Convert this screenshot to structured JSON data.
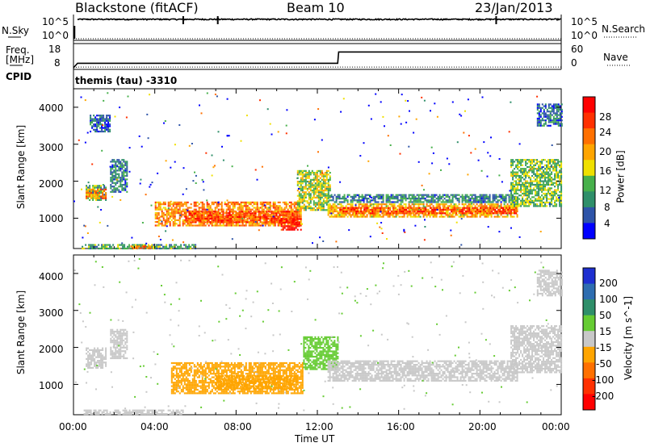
{
  "header": {
    "station": "Blackstone (fitACF)",
    "beam": "Beam 10",
    "date": "23/Jan/2013"
  },
  "top_panel": {
    "left_label": "N.Sky",
    "left_ticks": [
      "10^5",
      "10^0"
    ],
    "right_label": "N.Search",
    "right_ticks": [
      "10^5",
      "10^0"
    ]
  },
  "freq_panel": {
    "left_label_1": "Freq.",
    "left_label_2": "[MHz]",
    "left_ticks": [
      "18",
      "8"
    ],
    "right_label": "Nave",
    "right_ticks": [
      "60",
      "0"
    ],
    "cpid_label": "CPID",
    "cpid_value": "themis (tau) -3310"
  },
  "power_panel": {
    "ylabel": "Slant Range [km]",
    "yticks": [
      "4000",
      "3000",
      "2000",
      "1000"
    ],
    "colorbar_label": "Power [dB]",
    "colorbar_ticks": [
      "28",
      "24",
      "20",
      "16",
      "12",
      "8",
      "4"
    ],
    "colors": [
      "#0000ff",
      "#2e54a8",
      "#2f8f6a",
      "#47b04b",
      "#f0e000",
      "#ffa500",
      "#ff7000",
      "#ff3000",
      "#ff0000"
    ]
  },
  "velocity_panel": {
    "ylabel": "Slant Range [km]",
    "yticks": [
      "4000",
      "3000",
      "2000",
      "1000"
    ],
    "colorbar_label": "Velocity [m s^-1]",
    "colorbar_ticks": [
      "200",
      "100",
      "50",
      "15",
      "-15",
      "-50",
      "-100",
      "-200"
    ],
    "colors": [
      "#1e2fd0",
      "#2e6db0",
      "#2f8f6a",
      "#66cc33",
      "#c8c8c8",
      "#ffa500",
      "#ff7000",
      "#ff3000",
      "#ff0000"
    ]
  },
  "xaxis": {
    "ticks": [
      "00:00",
      "04:00",
      "08:00",
      "12:00",
      "16:00",
      "20:00",
      "00:00"
    ],
    "label": "Time UT"
  },
  "chart_data": [
    {
      "type": "line",
      "title": "N.Sky / N.Search",
      "x": [
        0,
        0.2,
        5.4,
        5.45,
        7.1,
        7.15,
        12.0,
        20.8,
        20.85,
        23.5,
        24
      ],
      "ylog": true,
      "series": [
        {
          "values": [
            1,
            20000,
            20000,
            100000,
            20000,
            100000,
            20000,
            20000,
            100000,
            20000,
            20000
          ]
        }
      ]
    },
    {
      "type": "line",
      "title": "Freq / Nave",
      "x": [
        0,
        0.2,
        13.0,
        13.05,
        24
      ],
      "series": [
        {
          "values": [
            8,
            10,
            10,
            15,
            15
          ]
        },
        {
          "values": [
            0,
            2,
            2,
            2,
            2
          ]
        }
      ]
    },
    {
      "type": "heatmap",
      "title": "Power [dB]",
      "xlim": [
        0,
        24
      ],
      "ylim": [
        180,
        4500
      ],
      "bands": [
        {
          "x": [
            0.6,
            1.6
          ],
          "y": [
            1500,
            1900
          ],
          "v": 12
        },
        {
          "x": [
            0.6,
            1.6
          ],
          "y": [
            1550,
            1800
          ],
          "v": 22
        },
        {
          "x": [
            1.8,
            2.6
          ],
          "y": [
            1700,
            2600
          ],
          "v": 10
        },
        {
          "x": [
            0.4,
            6.0
          ],
          "y": [
            180,
            300
          ],
          "v": 12
        },
        {
          "x": [
            2.8,
            3.8
          ],
          "y": [
            200,
            260
          ],
          "v": 22
        },
        {
          "x": [
            4.0,
            11.2
          ],
          "y": [
            780,
            1450
          ],
          "v": 22
        },
        {
          "x": [
            5.5,
            11.0
          ],
          "y": [
            900,
            1200
          ],
          "v": 26
        },
        {
          "x": [
            10.2,
            11.2
          ],
          "y": [
            700,
            1000
          ],
          "v": 30
        },
        {
          "x": [
            11.0,
            12.6
          ],
          "y": [
            1200,
            2300
          ],
          "v": 16
        },
        {
          "x": [
            12.5,
            21.8
          ],
          "y": [
            1450,
            1650
          ],
          "v": 10
        },
        {
          "x": [
            12.5,
            21.8
          ],
          "y": [
            1050,
            1400
          ],
          "v": 20
        },
        {
          "x": [
            13.0,
            21.8
          ],
          "y": [
            1150,
            1300
          ],
          "v": 26
        },
        {
          "x": [
            21.5,
            24.0
          ],
          "y": [
            1350,
            2600
          ],
          "v": 14
        },
        {
          "x": [
            22.8,
            24.0
          ],
          "y": [
            3500,
            4100
          ],
          "v": 8
        },
        {
          "x": [
            0.8,
            1.8
          ],
          "y": [
            3350,
            3800
          ],
          "v": 8
        }
      ]
    },
    {
      "type": "heatmap",
      "title": "Velocity [m s^-1]",
      "xlim": [
        0,
        24
      ],
      "ylim": [
        180,
        4500
      ],
      "bands": [
        {
          "x": [
            0.6,
            1.6
          ],
          "y": [
            1450,
            2000
          ],
          "v": 0
        },
        {
          "x": [
            1.8,
            2.6
          ],
          "y": [
            1700,
            2500
          ],
          "v": 0
        },
        {
          "x": [
            4.8,
            11.3
          ],
          "y": [
            750,
            1600
          ],
          "v": -40
        },
        {
          "x": [
            7.0,
            11.0
          ],
          "y": [
            900,
            1250
          ],
          "v": -40
        },
        {
          "x": [
            11.3,
            13.0
          ],
          "y": [
            1400,
            2300
          ],
          "v": 30
        },
        {
          "x": [
            12.5,
            21.8
          ],
          "y": [
            1100,
            1650
          ],
          "v": 0
        },
        {
          "x": [
            21.5,
            24.0
          ],
          "y": [
            1350,
            2600
          ],
          "v": 0
        },
        {
          "x": [
            22.8,
            24.0
          ],
          "y": [
            3400,
            4100
          ],
          "v": 0
        },
        {
          "x": [
            0.5,
            5.5
          ],
          "y": [
            180,
            320
          ],
          "v": 10
        }
      ]
    }
  ]
}
